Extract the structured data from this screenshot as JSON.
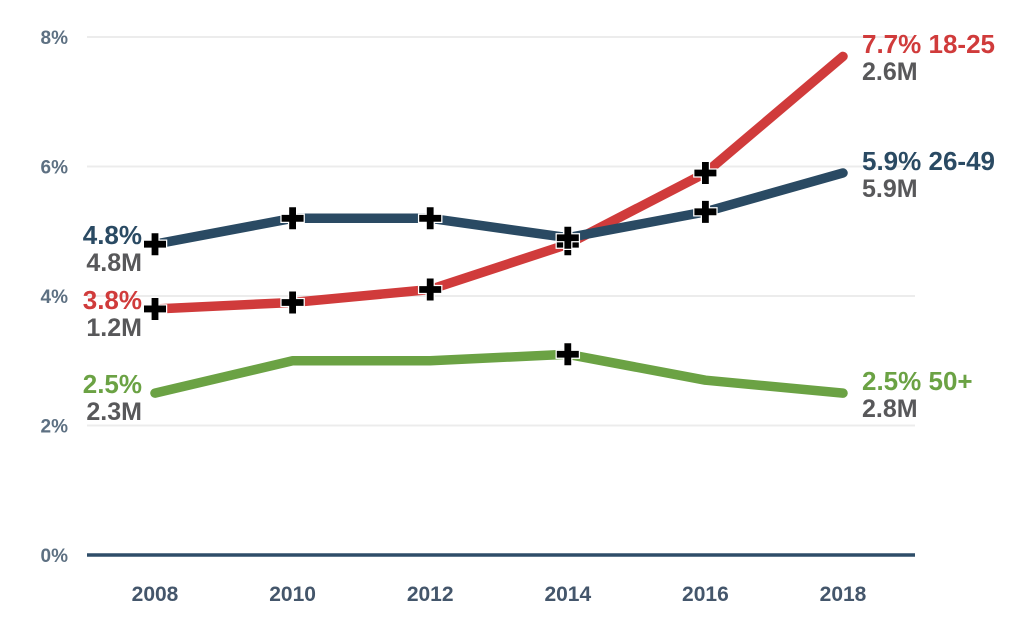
{
  "chart_data": {
    "type": "line",
    "title": "",
    "xlabel": "",
    "ylabel": "",
    "x_labels": [
      "2008",
      "2010",
      "2012",
      "2014",
      "2016",
      "2018"
    ],
    "ylim": [
      0,
      8
    ],
    "y_ticks": [
      {
        "label": "0%",
        "value": 0
      },
      {
        "label": "2%",
        "value": 2
      },
      {
        "label": "4%",
        "value": 4
      },
      {
        "label": "6%",
        "value": 6
      },
      {
        "label": "8%",
        "value": 8
      }
    ],
    "grid": "horizontal",
    "legend_position": "line-end-labels",
    "series": [
      {
        "name": "18-25",
        "color": "#d03b3b",
        "values": [
          3.8,
          3.9,
          4.1,
          4.8,
          5.9,
          7.7
        ],
        "marker_indices": [
          0,
          1,
          2,
          3,
          4
        ],
        "marker": "black-plus",
        "start_label": {
          "pct": "3.8%",
          "count": "1.2M"
        },
        "end_label": {
          "pct_group": "7.7% 18-25",
          "count": "2.6M"
        }
      },
      {
        "name": "26-49",
        "color": "#2a4a63",
        "values": [
          4.8,
          5.2,
          5.2,
          4.9,
          5.3,
          5.9
        ],
        "marker_indices": [
          0,
          1,
          2,
          3,
          4
        ],
        "marker": "black-plus",
        "start_label": {
          "pct": "4.8%",
          "count": "4.8M"
        },
        "end_label": {
          "pct_group": "5.9% 26-49",
          "count": "5.9M"
        }
      },
      {
        "name": "50+",
        "color": "#6ba244",
        "values": [
          2.5,
          3.0,
          3.0,
          3.1,
          2.7,
          2.5
        ],
        "marker_indices": [
          3
        ],
        "marker": "black-plus",
        "start_label": {
          "pct": "2.5%",
          "count": "2.3M"
        },
        "end_label": {
          "pct_group": "2.5% 50+",
          "count": "2.8M"
        }
      }
    ],
    "colors": {
      "axis_line": "#2e4d68",
      "gridline": "#ececec",
      "y_tick_label": "#5d7082",
      "x_tick_label": "#44566b",
      "count_label": "#58585a",
      "marker": "#000000"
    }
  }
}
